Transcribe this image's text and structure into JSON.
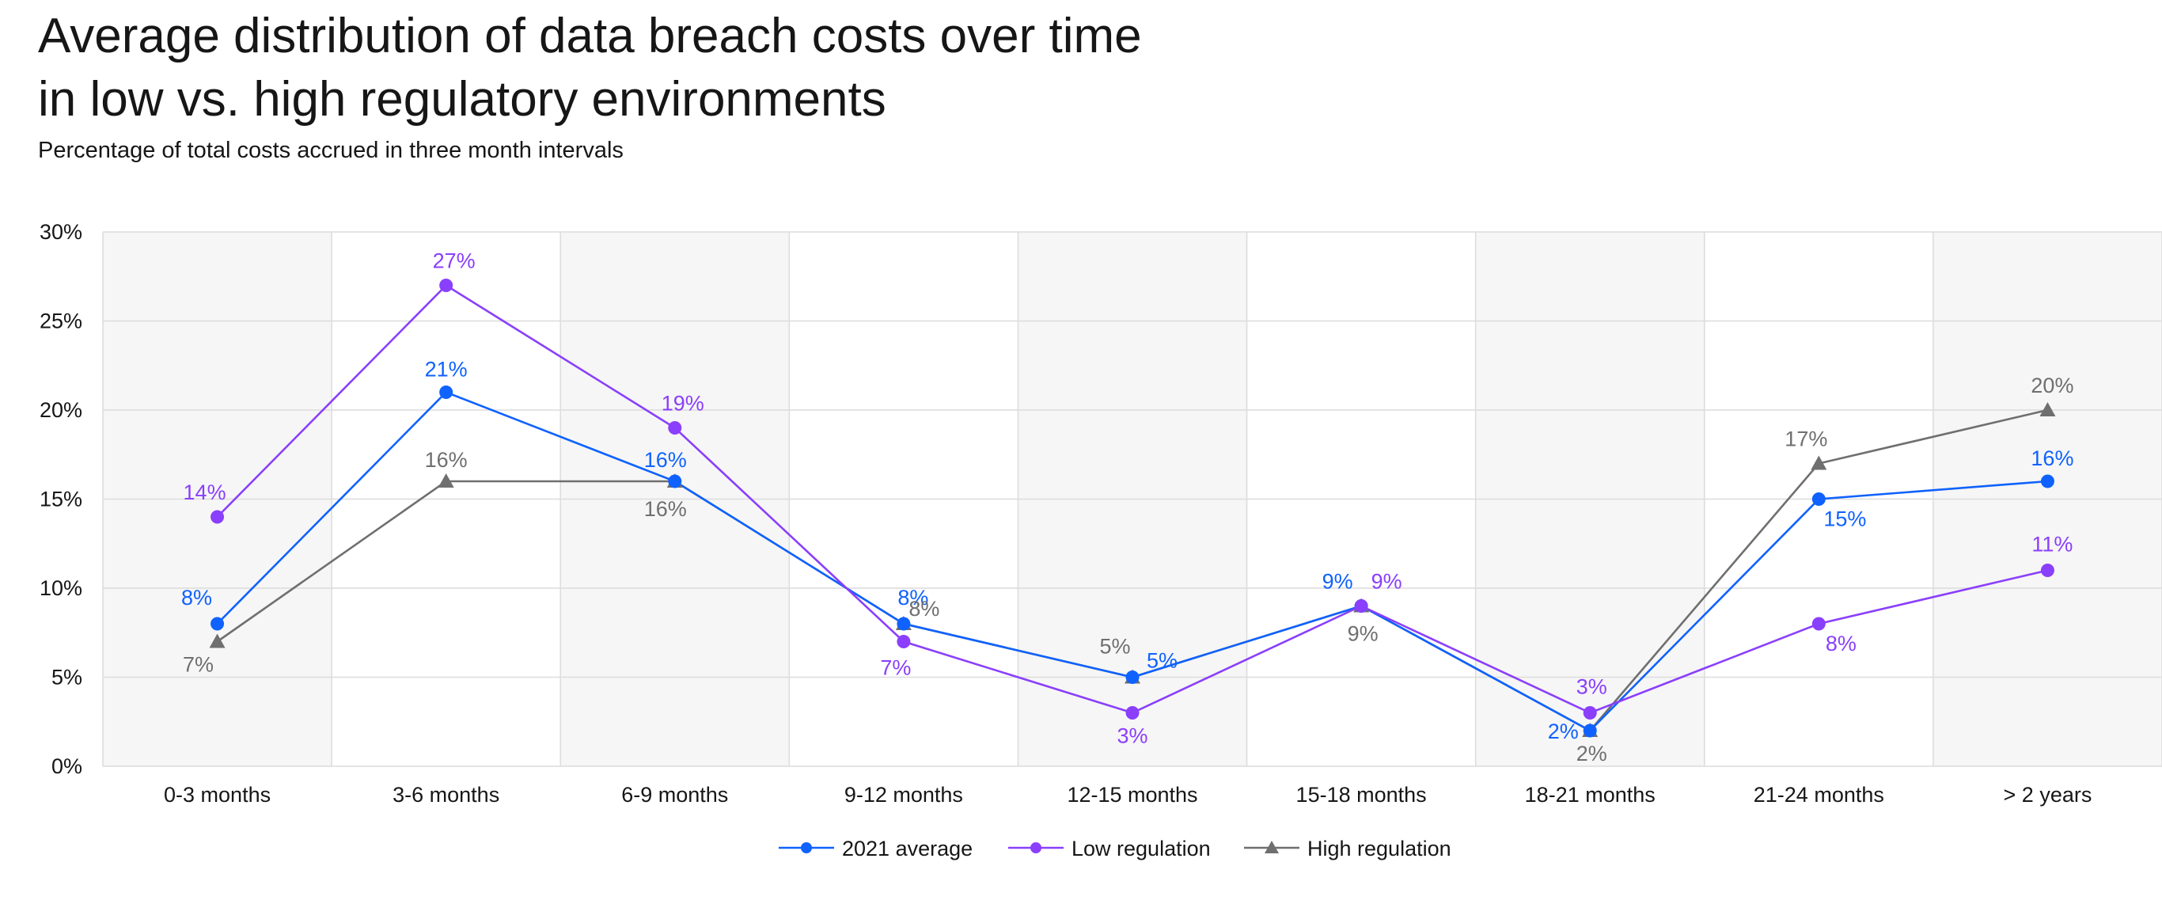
{
  "chart_data": {
    "type": "line",
    "title": "Average distribution of data breach costs over time in low vs. high regulatory environments",
    "subtitle": "Percentage of total costs accrued in three month intervals",
    "categories": [
      "0-3 months",
      "3-6 months",
      "6-9 months",
      "9-12 months",
      "12-15 months",
      "15-18 months",
      "18-21 months",
      "21-24 months",
      "> 2 years"
    ],
    "ylim": [
      0,
      30
    ],
    "yticks": [
      0,
      5,
      10,
      15,
      20,
      25,
      30
    ],
    "ytick_labels": [
      "0%",
      "5%",
      "10%",
      "15%",
      "20%",
      "25%",
      "30%"
    ],
    "xlabel": "",
    "ylabel": "",
    "grid": true,
    "legend_position": "bottom-center",
    "series": [
      {
        "name": "2021 average",
        "color": "#0f62fe",
        "marker": "circle",
        "values": [
          8,
          21,
          16,
          8,
          5,
          9,
          2,
          15,
          16
        ],
        "labels": [
          "8%",
          "21%",
          "16%",
          "8%",
          "5%",
          "9%",
          "2%",
          "15%",
          "16%"
        ]
      },
      {
        "name": "Low regulation",
        "color": "#8a3ffc",
        "marker": "circle",
        "values": [
          14,
          27,
          19,
          7,
          3,
          9,
          3,
          8,
          11
        ],
        "labels": [
          "14%",
          "27%",
          "19%",
          "7%",
          "3%",
          "9%",
          "3%",
          "8%",
          "11%"
        ]
      },
      {
        "name": "High regulation",
        "color": "#6f6f6f",
        "marker": "triangle",
        "values": [
          7,
          16,
          16,
          8,
          5,
          9,
          2,
          17,
          20
        ],
        "labels": [
          "7%",
          "16%",
          "16%",
          "8%",
          "5%",
          "9%",
          "2%",
          "17%",
          "20%"
        ]
      }
    ]
  }
}
